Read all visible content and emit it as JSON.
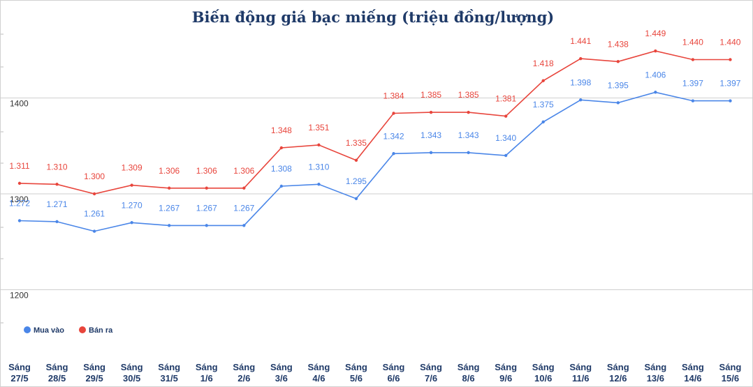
{
  "chart_data": {
    "type": "line",
    "title": "Biến động giá bạc miếng (triệu đồng/lượng)",
    "categories": [
      [
        "Sáng",
        "27/5"
      ],
      [
        "Sáng",
        "28/5"
      ],
      [
        "Sáng",
        "29/5"
      ],
      [
        "Sáng",
        "30/5"
      ],
      [
        "Sáng",
        "31/5"
      ],
      [
        "Sáng",
        "1/6"
      ],
      [
        "Sáng",
        "2/6"
      ],
      [
        "Sáng",
        "3/6"
      ],
      [
        "Sáng",
        "4/6"
      ],
      [
        "Sáng",
        "5/6"
      ],
      [
        "Sáng",
        "6/6"
      ],
      [
        "Sáng",
        "7/6"
      ],
      [
        "Sáng",
        "8/6"
      ],
      [
        "Sáng",
        "9/6"
      ],
      [
        "Sáng",
        "10/6"
      ],
      [
        "Sáng",
        "11/6"
      ],
      [
        "Sáng",
        "12/6"
      ],
      [
        "Sáng",
        "13/6"
      ],
      [
        "Sáng",
        "14/6"
      ],
      [
        "Sáng",
        "15/6"
      ]
    ],
    "yticks": [
      1200,
      1300,
      1400
    ],
    "ylim": [
      1140,
      1475
    ],
    "series": [
      {
        "name": "Bán ra",
        "color": "#e8453c",
        "values": [
          1311,
          1310,
          1300,
          1309,
          1306,
          1306,
          1306,
          1348,
          1351,
          1335,
          1384,
          1385,
          1385,
          1381,
          1418,
          1441,
          1438,
          1449,
          1440,
          1440
        ],
        "labels": [
          "1.311",
          "1.310",
          "1.300",
          "1.309",
          "1.306",
          "1.306",
          "1.306",
          "1.348",
          "1.351",
          "1.335",
          "1.384",
          "1.385",
          "1.385",
          "1.381",
          "1.418",
          "1.441",
          "1.438",
          "1.449",
          "1.440",
          "1.440"
        ]
      },
      {
        "name": "Mua vào",
        "color": "#4a86e8",
        "values": [
          1272,
          1271,
          1261,
          1270,
          1267,
          1267,
          1267,
          1308,
          1310,
          1295,
          1342,
          1343,
          1343,
          1340,
          1375,
          1398,
          1395,
          1406,
          1397,
          1397
        ],
        "labels": [
          "1.272",
          "1.271",
          "1.261",
          "1.270",
          "1.267",
          "1.267",
          "1.267",
          "1.308",
          "1.310",
          "1.295",
          "1.342",
          "1.343",
          "1.343",
          "1.340",
          "1.375",
          "1.398",
          "1.395",
          "1.406",
          "1.397",
          "1.397"
        ]
      }
    ],
    "legend": [
      {
        "name": "Mua vào",
        "color": "#4a86e8"
      },
      {
        "name": "Bán ra",
        "color": "#e8453c"
      }
    ],
    "legend_position": "bottom-left"
  }
}
